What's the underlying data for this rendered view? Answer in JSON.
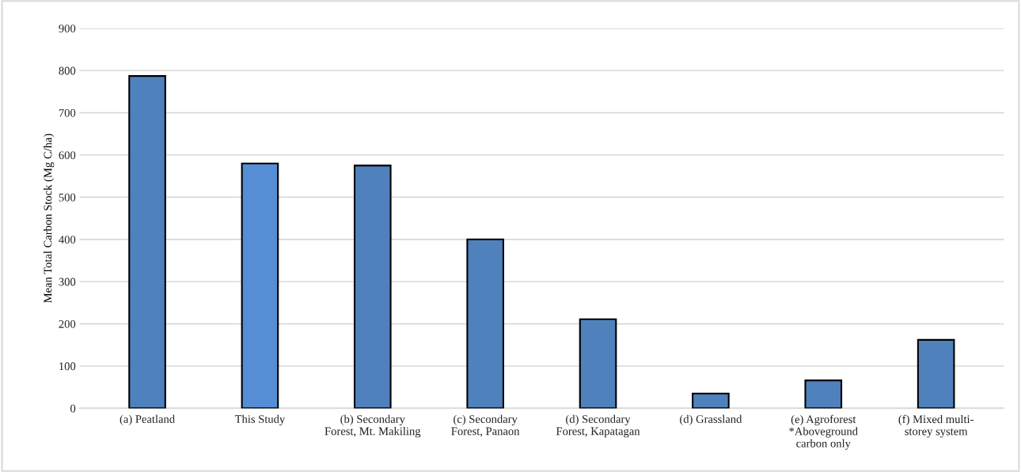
{
  "chart_data": {
    "type": "bar",
    "ylabel": "Mean Total Carbon Stock (Mg C/ha)",
    "categories": [
      "(a) Peatland",
      "This Study",
      "(b) Secondary\nForest, Mt. Makiling",
      "(c) Secondary\nForest, Panaon",
      "(d) Secondary\nForest, Kapatagan",
      "(d) Grassland",
      "(e) Agroforest\n*Aboveground\ncarbon only",
      "(f) Mixed multi-\nstorey system"
    ],
    "values": [
      787,
      580,
      575,
      400,
      211,
      35,
      66,
      162
    ],
    "colors": [
      "#4f81bd",
      "#558ed5",
      "#4f81bd",
      "#4f81bd",
      "#4f81bd",
      "#4f81bd",
      "#4f81bd",
      "#4f81bd"
    ],
    "ylim": [
      0,
      900
    ],
    "yticks": [
      0,
      100,
      200,
      300,
      400,
      500,
      600,
      700,
      800,
      900
    ],
    "grid": "y"
  }
}
